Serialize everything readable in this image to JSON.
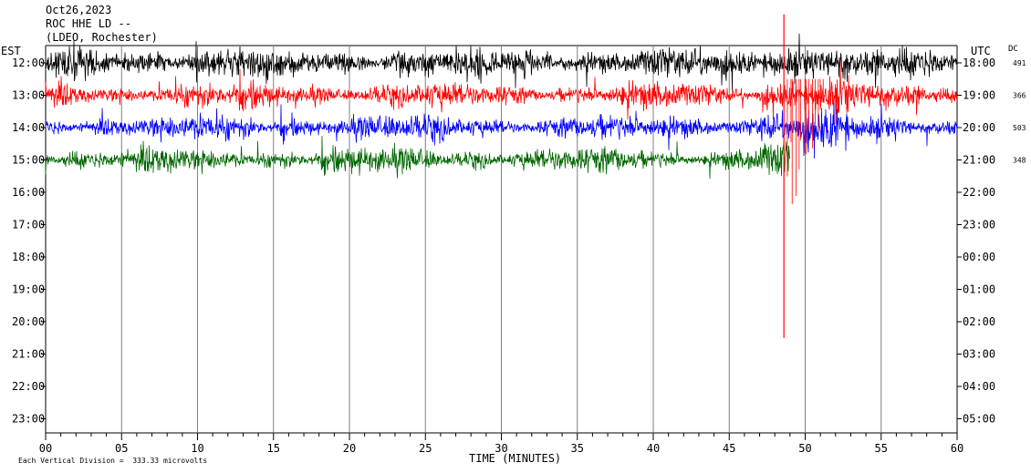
{
  "header": {
    "date": "Oct26,2023",
    "station": "ROC HHE LD --",
    "network": "(LDEO, Rochester)"
  },
  "left_tz": "EST",
  "right_tz": "UTC",
  "dc_label": "DC",
  "footer": "Each Vertical Division =  333.33 microvolts",
  "colors": {
    "black": "#000000",
    "red": "#ff0000",
    "blue": "#0000ff",
    "green": "#006600",
    "grid": "#808080"
  },
  "chart_data": {
    "type": "line",
    "xlabel": "TIME (MINUTES)",
    "xlim": [
      0,
      60
    ],
    "x_ticks": [
      "00",
      "05",
      "10",
      "15",
      "20",
      "25",
      "30",
      "35",
      "40",
      "45",
      "50",
      "55",
      "60"
    ],
    "y_left_ticks": [
      "12:00",
      "13:00",
      "14:00",
      "15:00",
      "16:00",
      "17:00",
      "18:00",
      "19:00",
      "20:00",
      "21:00",
      "22:00",
      "23:00"
    ],
    "y_right_ticks": [
      "18:00",
      "19:00",
      "20:00",
      "21:00",
      "22:00",
      "23:00",
      "00:00",
      "01:00",
      "02:00",
      "03:00",
      "04:00",
      "05:00"
    ],
    "series": [
      {
        "color": "#000000",
        "hour": "12:00",
        "end_minute": 60,
        "dc": "491",
        "amplitude": 0.5
      },
      {
        "color": "#ff0000",
        "hour": "13:00",
        "end_minute": 60,
        "dc": "366",
        "amplitude": 0.42
      },
      {
        "color": "#0000ff",
        "hour": "14:00",
        "end_minute": 60,
        "dc": "503",
        "amplitude": 0.42
      },
      {
        "color": "#006600",
        "hour": "15:00",
        "end_minute": 49,
        "dc": "348",
        "amplitude": 0.42
      }
    ],
    "events": [
      {
        "series": 1,
        "minute": 48.6,
        "depth_hours": 7.5
      }
    ]
  }
}
